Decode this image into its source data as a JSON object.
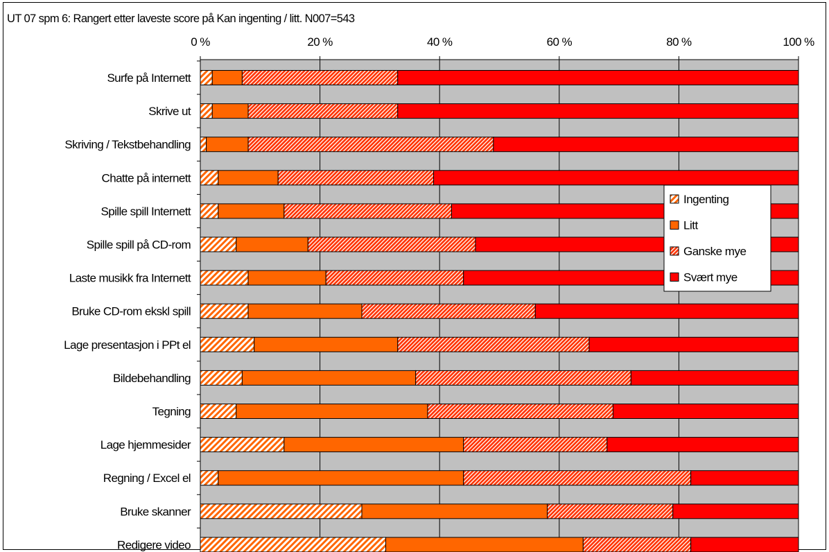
{
  "chart_data": {
    "type": "bar",
    "orientation": "horizontal",
    "stacked": "percent",
    "title": "UT 07 spm 6: Rangert etter laveste score på Kan ingenting / litt.  N007=543",
    "xlim": [
      0,
      100
    ],
    "x_ticks": [
      "0 %",
      "20 %",
      "40 %",
      "60 %",
      "80 %",
      "100 %"
    ],
    "x_tick_values": [
      0,
      20,
      40,
      60,
      80,
      100
    ],
    "grid": true,
    "legend_position": "right",
    "categories": [
      "Surfe på Internett",
      "Skrive ut",
      "Skriving / Tekstbehandling",
      "Chatte på internett",
      "Spille spill Internett",
      "Spille spill på CD-rom",
      "Laste musikk fra Internett",
      "Bruke CD-rom ekskl spill",
      "Lage presentasjon i PPt el",
      "Bildebehandling",
      "Tegning",
      "Lage hjemmesider",
      "Regning / Excel el",
      "Bruke skanner",
      "Redigere video"
    ],
    "series": [
      {
        "name": "Ingenting",
        "color": "#ff6600",
        "pattern": "hatch-light",
        "values": [
          2,
          2,
          1,
          3,
          3,
          6,
          8,
          8,
          9,
          7,
          6,
          14,
          3,
          27,
          31
        ]
      },
      {
        "name": "Litt",
        "color": "#ff6600",
        "pattern": "solid",
        "values": [
          5,
          6,
          7,
          10,
          11,
          12,
          13,
          19,
          24,
          29,
          32,
          30,
          41,
          31,
          33
        ]
      },
      {
        "name": "Ganske mye",
        "color": "#ff3300",
        "pattern": "hatch-dense",
        "values": [
          26,
          25,
          41,
          26,
          28,
          28,
          23,
          29,
          32,
          36,
          31,
          24,
          38,
          21,
          18
        ]
      },
      {
        "name": "Svært mye",
        "color": "#ff0000",
        "pattern": "solid",
        "values": [
          67,
          67,
          51,
          61,
          58,
          54,
          56,
          44,
          35,
          28,
          31,
          32,
          18,
          21,
          18
        ]
      }
    ]
  }
}
